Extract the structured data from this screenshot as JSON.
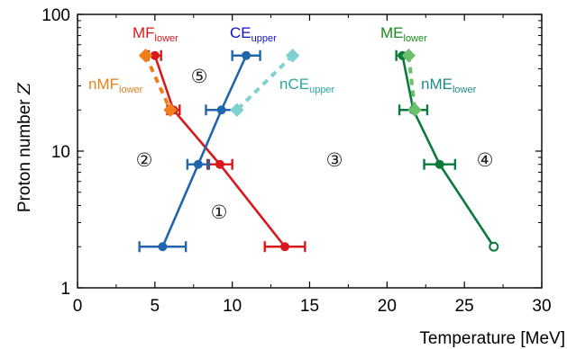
{
  "chart_data": {
    "type": "line",
    "xlabel": "Temperature [MeV]",
    "ylabel_main": "Proton number ",
    "ylabel_var": "Z",
    "xlim": [
      0,
      30
    ],
    "ylim": [
      1,
      100
    ],
    "yscale": "log",
    "xticks": [
      0,
      5,
      10,
      15,
      20,
      25,
      30
    ],
    "yticks": [
      1,
      10,
      100
    ],
    "minor_xticks": [
      2.5,
      7.5,
      12.5,
      17.5,
      22.5,
      27.5
    ],
    "minor_yticks": [
      2,
      3,
      4,
      5,
      6,
      7,
      8,
      9,
      20,
      30,
      40,
      50,
      60,
      70,
      80,
      90
    ],
    "series": [
      {
        "key": "MF_lower",
        "label_main": "MF",
        "label_sub": "lower",
        "color": "#d7191c",
        "style": "solid",
        "marker": "circle",
        "points": [
          {
            "x": 5.0,
            "y": 50,
            "xerr": 0.4
          },
          {
            "x": 6.2,
            "y": 20,
            "xerr": 0.4
          },
          {
            "x": 9.2,
            "y": 8,
            "xerr": 0.8
          },
          {
            "x": 13.4,
            "y": 2,
            "xerr": 1.3
          }
        ]
      },
      {
        "key": "CE_upper",
        "label_main": "CE",
        "label_sub": "upper",
        "color": "#2166ac",
        "label_color": "#1010c8",
        "style": "solid",
        "marker": "circle",
        "points": [
          {
            "x": 10.9,
            "y": 50,
            "xerr": 0.9
          },
          {
            "x": 9.3,
            "y": 20,
            "xerr": 1.0
          },
          {
            "x": 7.8,
            "y": 8,
            "xerr": 0.7
          },
          {
            "x": 5.5,
            "y": 2,
            "xerr": 1.5
          }
        ]
      },
      {
        "key": "ME_lower",
        "label_main": "ME",
        "label_sub": "lower",
        "color": "#0b7a3e",
        "label_color": "#1a8a1a",
        "style": "solid",
        "marker": "circle",
        "points": [
          {
            "x": 21.0,
            "y": 50,
            "xerr": 0.4
          },
          {
            "x": 21.7,
            "y": 20,
            "xerr": 0.9
          },
          {
            "x": 23.4,
            "y": 8,
            "xerr": 1.0
          },
          {
            "x": 26.9,
            "y": 2,
            "xerr": 0,
            "open": true
          }
        ]
      },
      {
        "key": "nMF_lower",
        "label_main": "nMF",
        "label_sub": "lower",
        "color": "#f07f1a",
        "style": "dashed",
        "marker": "diamond",
        "points": [
          {
            "x": 4.4,
            "y": 50
          },
          {
            "x": 6.0,
            "y": 20
          }
        ]
      },
      {
        "key": "nCE_upper",
        "label_main": "nCE",
        "label_sub": "upper",
        "color": "#7fd1d0",
        "label_color": "#2aa7a0",
        "style": "dashed",
        "marker": "diamond",
        "points": [
          {
            "x": 13.9,
            "y": 50
          },
          {
            "x": 10.3,
            "y": 20
          }
        ]
      },
      {
        "key": "nME_lower",
        "label_main": "nME",
        "label_sub": "lower",
        "color": "#6cc06c",
        "label_color": "#1f8a8a",
        "style": "dashed",
        "marker": "diamond",
        "points": [
          {
            "x": 21.4,
            "y": 50
          },
          {
            "x": 21.8,
            "y": 20
          }
        ]
      }
    ],
    "regions": [
      {
        "label": "①"
      },
      {
        "label": "②"
      },
      {
        "label": "③"
      },
      {
        "label": "④"
      },
      {
        "label": "⑤"
      }
    ]
  }
}
